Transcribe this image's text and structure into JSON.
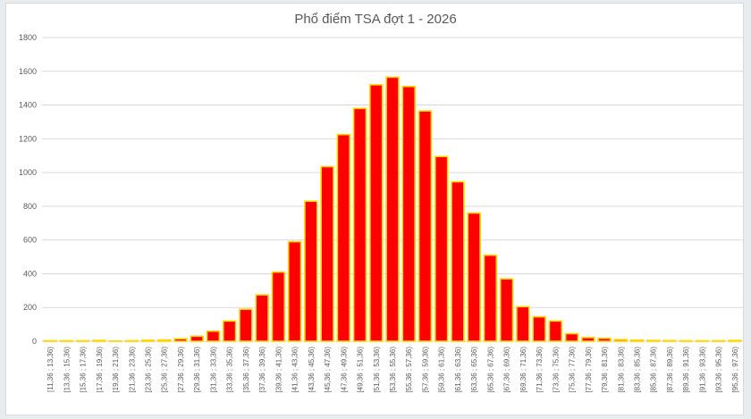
{
  "chart_data": {
    "type": "bar",
    "title": "Phổ điểm TSA đợt 1 - 2026",
    "xlabel": "",
    "ylabel": "",
    "ylim": [
      0,
      1800
    ],
    "yticks": [
      0,
      200,
      400,
      600,
      800,
      1000,
      1200,
      1400,
      1600,
      1800
    ],
    "grid": true,
    "legend": "none",
    "bar_fill_color": "#ff0000",
    "bar_edge_color": "#ffd700",
    "categories": [
      "[11,36 ; 13,36)",
      "[13,36 ; 15,36)",
      "[15,36 ; 17,36)",
      "[17,36 ; 19,36)",
      "[19,36 ; 21,36)",
      "[21,36 ; 23,36)",
      "[23,36 ; 25,36)",
      "[25,36 ; 27,36)",
      "[27,36 ; 29,36)",
      "[29,36 ; 31,36)",
      "[31,36 ; 33,36)",
      "[33,36 ; 35,36)",
      "[35,36 ; 37,36)",
      "[37,36 ; 39,36)",
      "[39,36 ; 41,36)",
      "[41,36 ; 43,36)",
      "[43,36 ; 45,36)",
      "[45,36 ; 47,36)",
      "[47,36 ; 49,36)",
      "[49,36 ; 51,36)",
      "[51,36 ; 53,36)",
      "[53,36 ; 55,36)",
      "[55,36 ; 57,36)",
      "[57,36 ; 59,36)",
      "[59,36 ; 61,36)",
      "[61,36 ; 63,36)",
      "[63,36 ; 65,36)",
      "[65,36 ; 67,36)",
      "[67,36 ; 69,36)",
      "[69,36 ; 71,36)",
      "[71,36 ; 73,36)",
      "[73,36 ; 75,36)",
      "[75,36 ; 77,36)",
      "[77,36 ; 79,36)",
      "[79,36 ; 81,36)",
      "[81,36 ; 83,36)",
      "[83,36 ; 85,36)",
      "[85,36 ; 87,36)",
      "[87,36 ; 89,36)",
      "[89,36 ; 91,36)",
      "[91,36 ; 93,36)",
      "[93,36 ; 95,36)",
      "[95,36 ; 97,36)"
    ],
    "values": [
      0,
      0,
      0,
      5,
      1,
      3,
      6,
      8,
      15,
      30,
      60,
      120,
      190,
      275,
      410,
      590,
      830,
      1035,
      1225,
      1380,
      1520,
      1565,
      1510,
      1365,
      1095,
      945,
      760,
      510,
      370,
      205,
      145,
      120,
      45,
      22,
      18,
      10,
      7,
      5,
      4,
      0,
      0,
      0,
      5
    ]
  }
}
